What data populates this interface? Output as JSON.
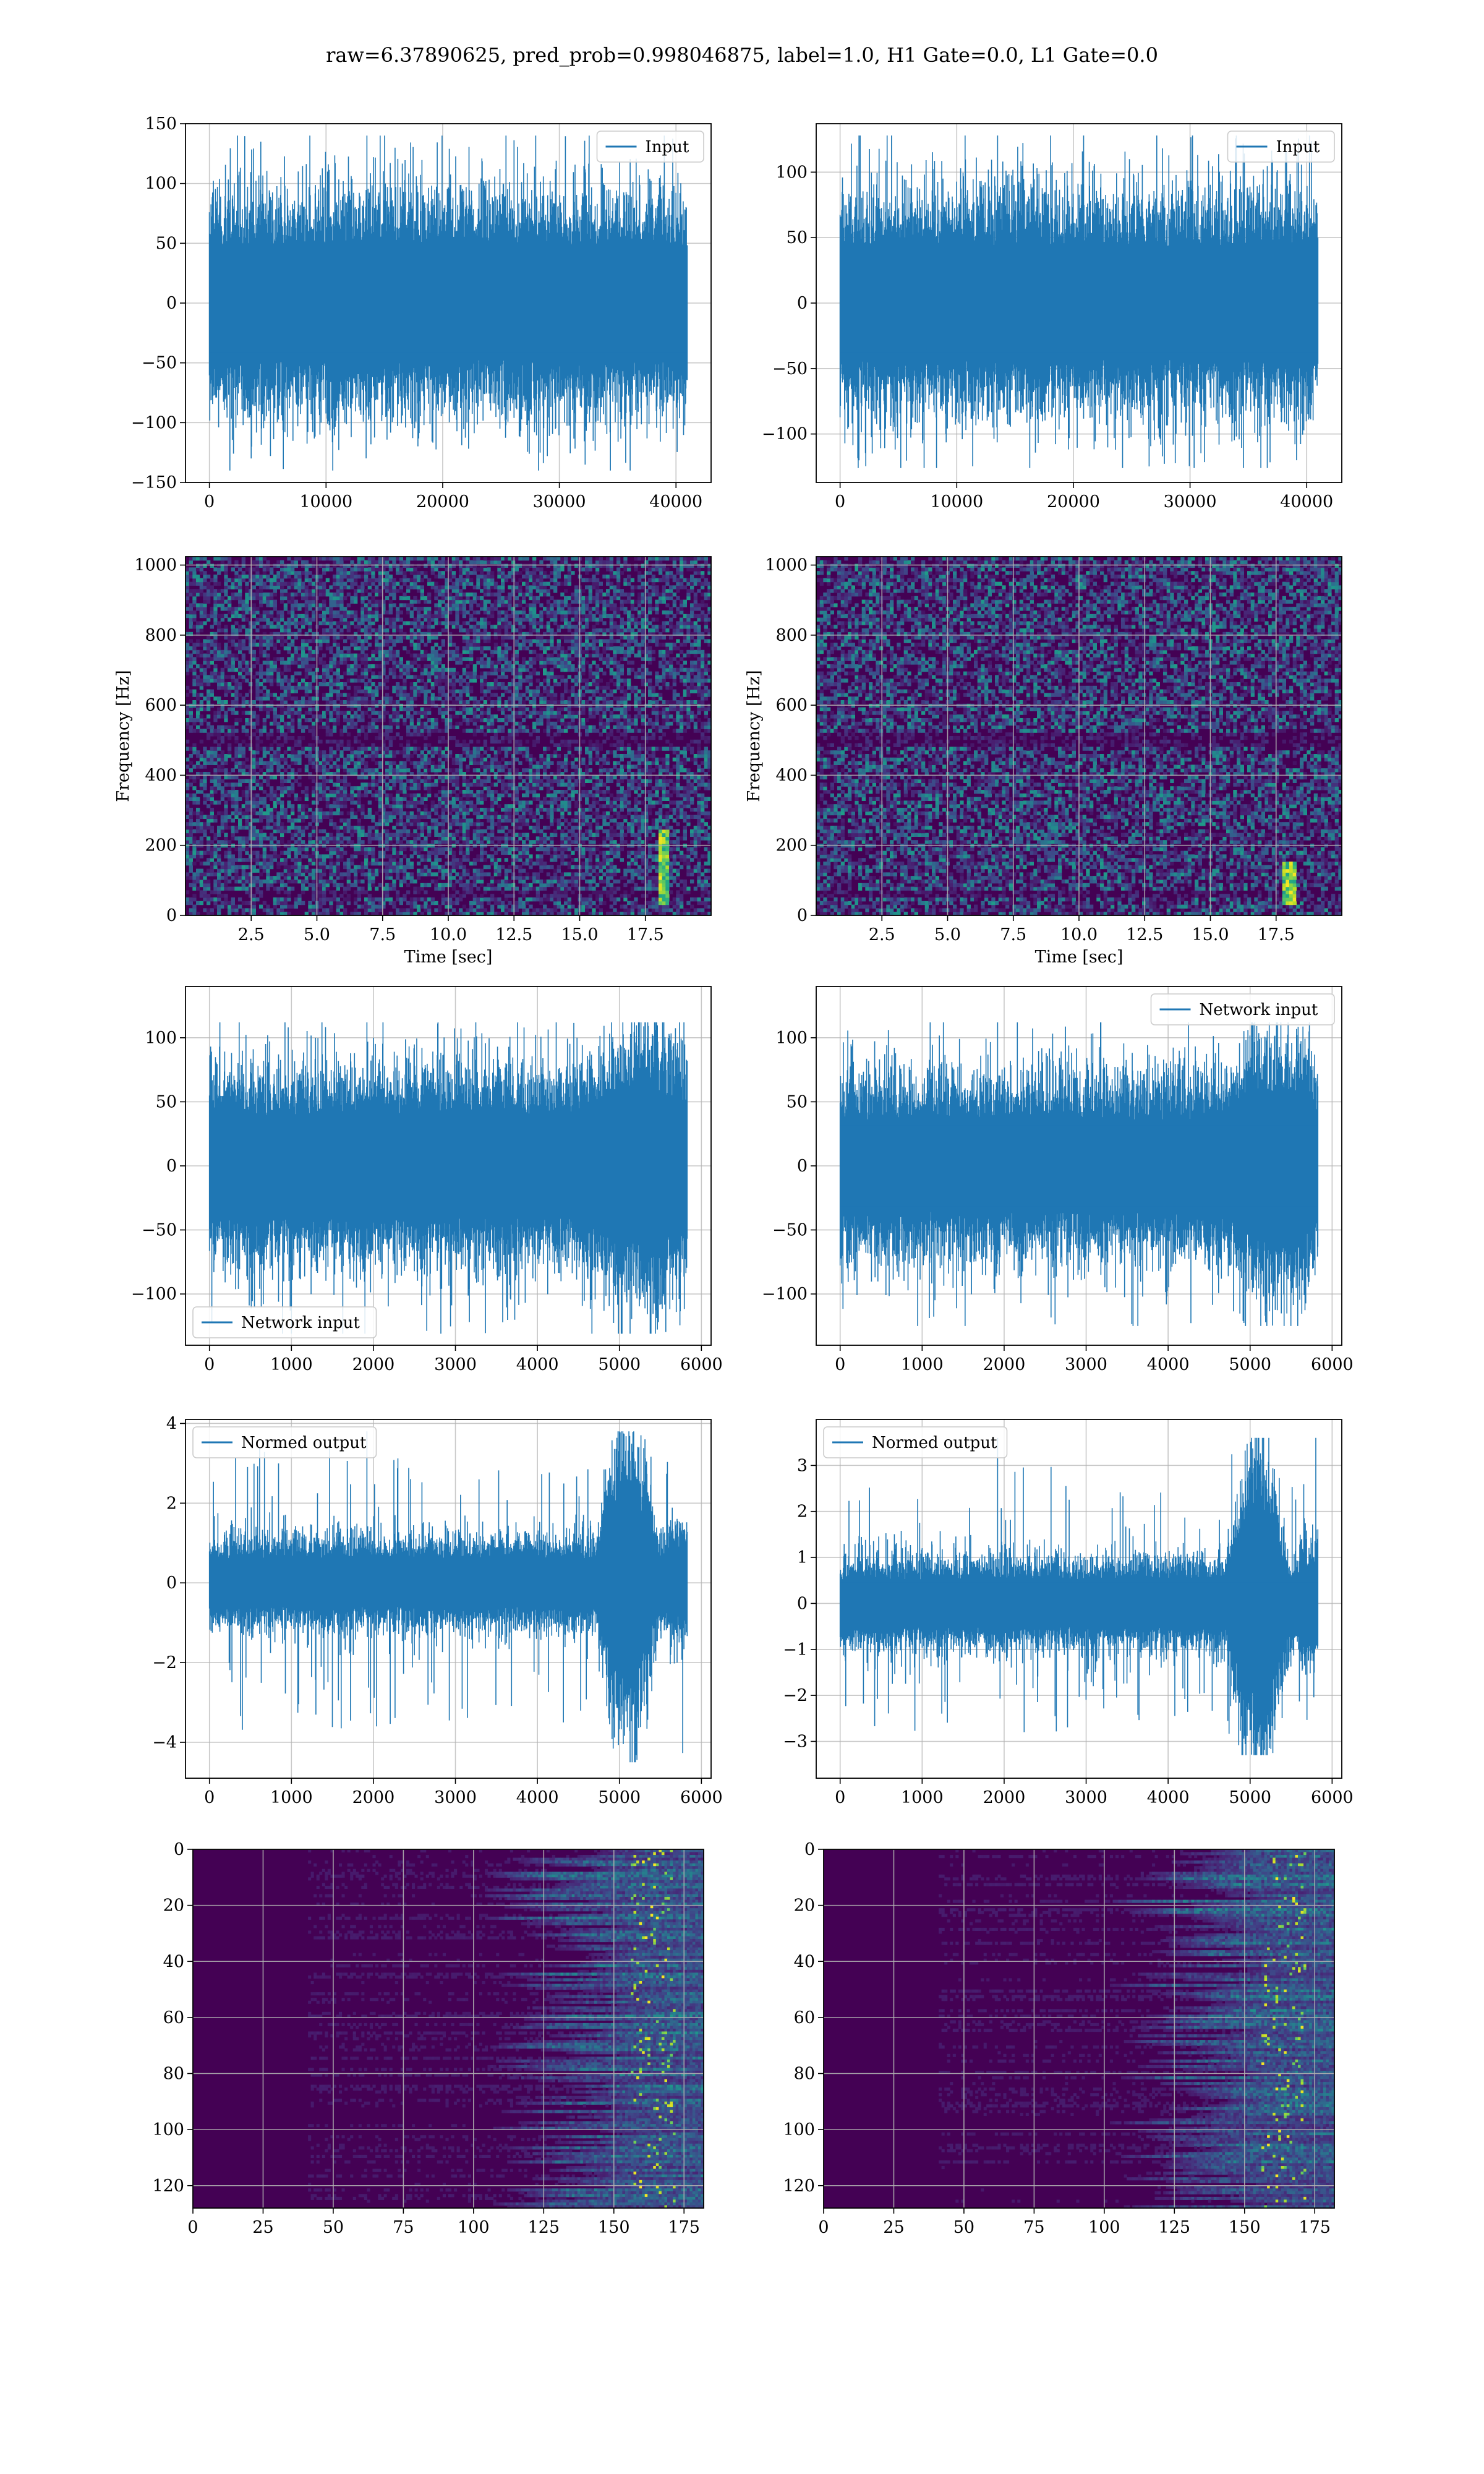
{
  "figure": {
    "suptitle": "raw=6.37890625, pred_prob=0.998046875, label=1.0, H1 Gate=0.0, L1 Gate=0.0"
  },
  "colors": {
    "line": "#1f77b4",
    "grid": "#b0b0b0",
    "spine": "#000000",
    "viridis_low": "#440154",
    "viridis_high": "#fde725"
  },
  "chart_data": [
    {
      "id": "input-h1",
      "type": "line",
      "legend": "Input",
      "legend_loc": "upper right",
      "x": [
        0,
        10000,
        20000,
        30000,
        40000
      ],
      "xticks": [
        0,
        10000,
        20000,
        30000,
        40000
      ],
      "xlim": [
        -2048,
        43008
      ],
      "ylim": [
        -150,
        150
      ],
      "yticks": [
        -150,
        -100,
        -50,
        0,
        50,
        100,
        150
      ],
      "grid": true,
      "envelope": {
        "n": 40960,
        "core": 55,
        "peak": 140,
        "min": -140
      },
      "xlabel": "",
      "ylabel": ""
    },
    {
      "id": "input-l1",
      "type": "line",
      "legend": "Input",
      "legend_loc": "upper right",
      "xlim": [
        -2048,
        43008
      ],
      "xticks": [
        0,
        10000,
        20000,
        30000,
        40000
      ],
      "ylim": [
        -137,
        137
      ],
      "yticks": [
        -100,
        -50,
        0,
        50,
        100
      ],
      "grid": true,
      "envelope": {
        "n": 40960,
        "core": 50,
        "peak": 128,
        "min": -126
      },
      "xlabel": "",
      "ylabel": ""
    },
    {
      "id": "spec-h1",
      "type": "heatmap",
      "xlabel": "Time [sec]",
      "ylabel": "Frequency [Hz]",
      "xlim": [
        0,
        20
      ],
      "ylim": [
        0,
        1024
      ],
      "xticks": [
        2.5,
        5.0,
        7.5,
        10.0,
        12.5,
        15.0,
        17.5
      ],
      "yticks": [
        0,
        200,
        400,
        600,
        800,
        1000
      ],
      "grid": true,
      "colormap": "viridis",
      "chirp": {
        "t": 18.2,
        "f_low": 30,
        "f_high": 250
      }
    },
    {
      "id": "spec-l1",
      "type": "heatmap",
      "xlabel": "Time [sec]",
      "ylabel": "Frequency [Hz]",
      "xlim": [
        0,
        20
      ],
      "ylim": [
        0,
        1024
      ],
      "xticks": [
        2.5,
        5.0,
        7.5,
        10.0,
        12.5,
        15.0,
        17.5
      ],
      "yticks": [
        0,
        200,
        400,
        600,
        800,
        1000
      ],
      "grid": true,
      "colormap": "viridis",
      "chirp": {
        "t": 18.0,
        "f_low": 30,
        "f_high": 150
      }
    },
    {
      "id": "network-h1",
      "type": "line",
      "legend": "Network input",
      "legend_loc": "lower left",
      "xlim": [
        -292,
        6118
      ],
      "xticks": [
        0,
        1000,
        2000,
        3000,
        4000,
        5000,
        6000
      ],
      "ylim": [
        -140,
        140
      ],
      "yticks": [
        -100,
        -50,
        0,
        50,
        100
      ],
      "grid": true,
      "envelope": {
        "n": 5826,
        "core": 45,
        "peak": 112,
        "min": -131,
        "burst_at": 5300
      },
      "xlabel": "",
      "ylabel": ""
    },
    {
      "id": "network-l1",
      "type": "line",
      "legend": "Network input",
      "legend_loc": "upper right",
      "xlim": [
        -292,
        6118
      ],
      "xticks": [
        0,
        1000,
        2000,
        3000,
        4000,
        5000,
        6000
      ],
      "ylim": [
        -140,
        140
      ],
      "yticks": [
        -100,
        -50,
        0,
        50,
        100
      ],
      "grid": true,
      "envelope": {
        "n": 5826,
        "core": 42,
        "peak": 112,
        "min": -125,
        "burst_at": 5300
      },
      "xlabel": "",
      "ylabel": ""
    },
    {
      "id": "normed-h1",
      "type": "line",
      "legend": "Normed output",
      "legend_loc": "upper left",
      "xlim": [
        -292,
        6118
      ],
      "xticks": [
        0,
        1000,
        2000,
        3000,
        4000,
        5000,
        6000
      ],
      "ylim": [
        -4.9,
        4.1
      ],
      "yticks": [
        -4,
        -2,
        0,
        2,
        4
      ],
      "grid": true,
      "envelope": {
        "n": 5826,
        "core": 0.7,
        "peak": 3.8,
        "min": -4.5,
        "burst_from": 4700,
        "burst_to": 5600
      },
      "xlabel": "",
      "ylabel": ""
    },
    {
      "id": "normed-l1",
      "type": "line",
      "legend": "Normed output",
      "legend_loc": "upper left",
      "xlim": [
        -292,
        6118
      ],
      "xticks": [
        0,
        1000,
        2000,
        3000,
        4000,
        5000,
        6000
      ],
      "ylim": [
        -3.8,
        4.0
      ],
      "yticks": [
        -3,
        -2,
        -1,
        0,
        1,
        2,
        3
      ],
      "grid": true,
      "envelope": {
        "n": 5826,
        "core": 0.6,
        "peak": 3.6,
        "min": -3.3,
        "burst_from": 4700,
        "burst_to": 5600
      },
      "xlabel": "",
      "ylabel": ""
    },
    {
      "id": "feature-h1",
      "type": "heatmap",
      "xlim": [
        0,
        182
      ],
      "ylim": [
        128,
        0
      ],
      "xticks": [
        0,
        25,
        50,
        75,
        100,
        125,
        150,
        175
      ],
      "yticks": [
        0,
        20,
        40,
        60,
        80,
        100,
        120
      ],
      "grid": true,
      "colormap": "viridis",
      "xlabel": "",
      "ylabel": ""
    },
    {
      "id": "feature-l1",
      "type": "heatmap",
      "xlim": [
        0,
        182
      ],
      "ylim": [
        128,
        0
      ],
      "xticks": [
        0,
        25,
        50,
        75,
        100,
        125,
        150,
        175
      ],
      "yticks": [
        0,
        20,
        40,
        60,
        80,
        100,
        120
      ],
      "grid": true,
      "colormap": "viridis",
      "xlabel": "",
      "ylabel": ""
    }
  ]
}
